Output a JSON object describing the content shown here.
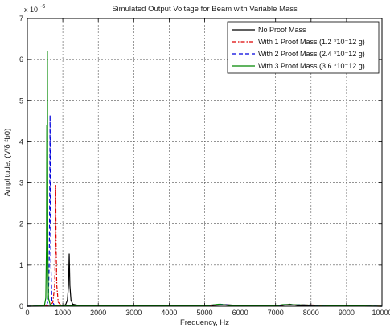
{
  "chart_data": {
    "type": "line",
    "title": "Simulated Output Voltage for Beam with Variable Mass",
    "xlabel": "Frequency, Hz",
    "ylabel": "Amplitude, (V/δ ²b0)",
    "y_exponent_label": "x 10",
    "y_exponent_power": "-6",
    "xlim": [
      0,
      10000
    ],
    "ylim": [
      0,
      7
    ],
    "x_ticks": [
      0,
      1000,
      2000,
      3000,
      4000,
      5000,
      6000,
      7000,
      8000,
      9000,
      10000
    ],
    "y_ticks": [
      0,
      1,
      2,
      3,
      4,
      5,
      6,
      7
    ],
    "grid": true,
    "legend_position": "top-right",
    "series": [
      {
        "name": "No Proof Mass",
        "color": "#000000",
        "dash": "solid",
        "points": [
          [
            0,
            0
          ],
          [
            1000,
            0.005
          ],
          [
            1080,
            0.04
          ],
          [
            1130,
            0.15
          ],
          [
            1160,
            0.5
          ],
          [
            1180,
            1.28
          ],
          [
            1200,
            0.5
          ],
          [
            1230,
            0.15
          ],
          [
            1280,
            0.05
          ],
          [
            1500,
            0.01
          ],
          [
            5000,
            0.01
          ],
          [
            5600,
            0.04
          ],
          [
            5900,
            0.02
          ],
          [
            7100,
            0.01
          ],
          [
            7400,
            0.05
          ],
          [
            7700,
            0.01
          ],
          [
            10000,
            0
          ]
        ]
      },
      {
        "name": "With 1 Proof Mass (1.2 *10⁻12 g)",
        "color": "#dd0000",
        "dash": "5,2,1.5,2",
        "points": [
          [
            0,
            0
          ],
          [
            650,
            0.01
          ],
          [
            720,
            0.1
          ],
          [
            770,
            0.5
          ],
          [
            790,
            1.5
          ],
          [
            800,
            2.95
          ],
          [
            810,
            1.5
          ],
          [
            830,
            0.5
          ],
          [
            870,
            0.1
          ],
          [
            950,
            0.02
          ],
          [
            5000,
            0.01
          ],
          [
            5500,
            0.04
          ],
          [
            5800,
            0.02
          ],
          [
            7000,
            0.01
          ],
          [
            7300,
            0.04
          ],
          [
            10000,
            0
          ]
        ]
      },
      {
        "name": "With 2 Proof Mass (2.4 *10⁻12 g)",
        "color": "#0000dd",
        "dash": "5,3",
        "points": [
          [
            0,
            0
          ],
          [
            540,
            0.01
          ],
          [
            590,
            0.15
          ],
          [
            615,
            1.0
          ],
          [
            630,
            2.5
          ],
          [
            640,
            4.65
          ],
          [
            650,
            2.5
          ],
          [
            665,
            1.0
          ],
          [
            690,
            0.15
          ],
          [
            760,
            0.02
          ],
          [
            5000,
            0.01
          ],
          [
            5450,
            0.05
          ],
          [
            5750,
            0.02
          ],
          [
            7000,
            0.01
          ],
          [
            7250,
            0.04
          ],
          [
            10000,
            0
          ]
        ]
      },
      {
        "name": "With 3 Proof Mass (3.6 *10⁻12 g)",
        "color": "#008800",
        "dash": "solid",
        "points": [
          [
            0,
            0
          ],
          [
            480,
            0.01
          ],
          [
            520,
            0.2
          ],
          [
            540,
            1.5
          ],
          [
            548,
            4.4
          ],
          [
            555,
            1.5
          ],
          [
            565,
            6.2
          ],
          [
            575,
            1.5
          ],
          [
            595,
            0.2
          ],
          [
            650,
            0.02
          ],
          [
            5000,
            0.01
          ],
          [
            5400,
            0.05
          ],
          [
            5700,
            0.02
          ],
          [
            7000,
            0.01
          ],
          [
            7200,
            0.04
          ],
          [
            10000,
            0
          ]
        ]
      }
    ]
  }
}
